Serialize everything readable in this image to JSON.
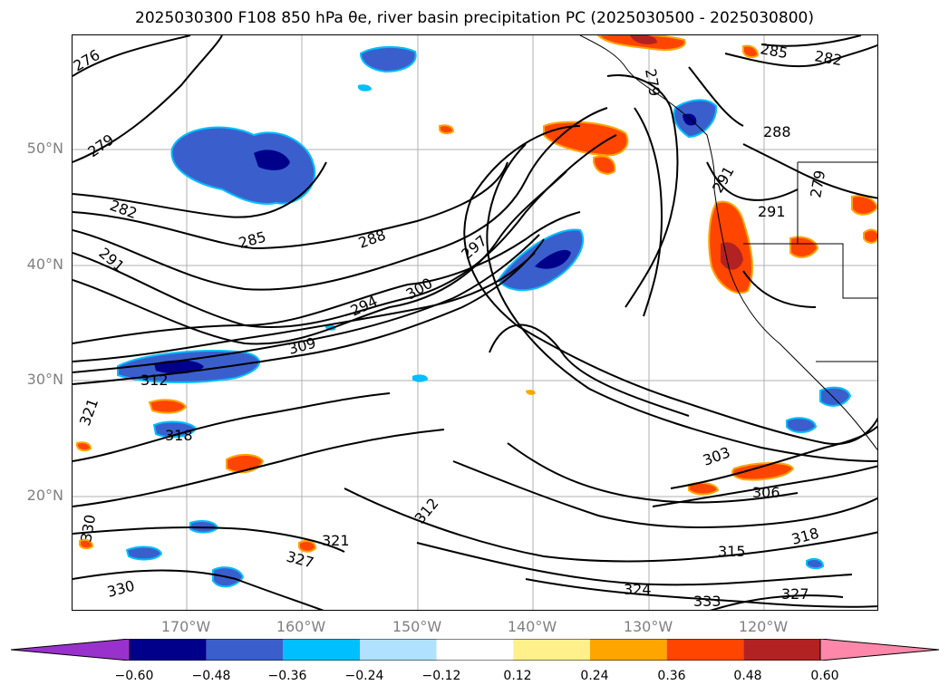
{
  "title": "2025030300 F108 850 hPa θe, river basin precipitation PC (2025030500 - 2025030800)",
  "map": {
    "lat_labels": [
      "50°N",
      "40°N",
      "30°N",
      "20°N"
    ],
    "lon_labels": [
      "170°W",
      "160°W",
      "150°W",
      "140°W",
      "130°W",
      "120°W"
    ],
    "contour_labels": [
      "276",
      "279",
      "282",
      "285",
      "288",
      "291",
      "294",
      "297",
      "300",
      "309",
      "312",
      "318",
      "321",
      "321",
      "324",
      "327",
      "327",
      "330",
      "330",
      "333",
      "303",
      "306",
      "315",
      "318",
      "312",
      "285",
      "282",
      "288",
      "291",
      "291",
      "279",
      "279"
    ]
  },
  "colorbar": {
    "ticks": [
      "−0.60",
      "−0.48",
      "−0.36",
      "−0.24",
      "−0.12",
      "0.12",
      "0.24",
      "0.36",
      "0.48",
      "0.60"
    ],
    "colors": [
      "#9932cc",
      "#00008b",
      "#3a5fcd",
      "#00bfff",
      "#b0e2ff",
      "#ffffff",
      "#fff08c",
      "#ffa500",
      "#ff4500",
      "#b22222",
      "#ff88aa"
    ]
  }
}
